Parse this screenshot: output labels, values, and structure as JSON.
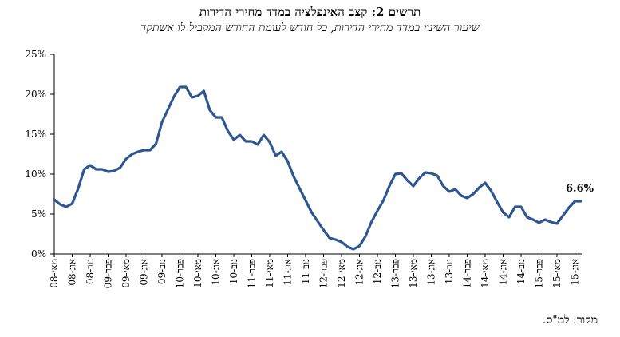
{
  "chart_data": {
    "type": "line",
    "title": "תרשים 2: קצב האינפלציה במדד מחירי הדירות",
    "subtitle": "שיעור השינוי במדד מחירי הדירות, כל חודש לעומת החודש המקביל לו אשתקד",
    "source": "מקור: למ\"ס.",
    "y_ticks": [
      "0%",
      "5%",
      "10%",
      "15%",
      "20%",
      "25%"
    ],
    "ylim": [
      0,
      25
    ],
    "x_tick_labels": [
      "מאי-08",
      "אוג-08",
      "נוב-08",
      "פבר-09",
      "מאי-09",
      "אוג-09",
      "נוב-09",
      "פבר-10",
      "מאי-10",
      "אוג-10",
      "נוב-10",
      "פבר-11",
      "מאי-11",
      "אוג-11",
      "נוב-11",
      "פבר-12",
      "מאי-12",
      "אוג-12",
      "נוב-12",
      "פבר-13",
      "מאי-13",
      "אוג-13",
      "נוב-13",
      "פבר-14",
      "מאי-14",
      "אוג-14",
      "נוב-14",
      "פבר-15",
      "מאי-15",
      "אוג-15"
    ],
    "annotation": "6.6%",
    "line_color": "#2e5790",
    "series": [
      {
        "values": [
          6.8,
          6.2,
          5.9,
          6.3,
          8.2,
          10.6,
          11.1,
          10.6,
          10.6,
          10.3,
          10.4,
          10.8,
          11.9,
          12.5,
          12.8,
          13.0,
          13.0,
          13.8,
          16.5,
          18.1,
          19.7,
          20.9,
          20.9,
          19.6,
          19.8,
          20.4,
          18.0,
          17.1,
          17.1,
          15.4,
          14.3,
          14.9,
          14.1,
          14.1,
          13.7,
          14.9,
          14.0,
          12.3,
          12.8,
          11.6,
          9.7,
          8.2,
          6.7,
          5.2,
          4.1,
          3.0,
          2.0,
          1.8,
          1.5,
          0.9,
          0.6,
          1.0,
          2.2,
          4.0,
          5.4,
          6.7,
          8.5,
          10.0,
          10.1,
          9.2,
          8.5,
          9.5,
          10.2,
          10.1,
          9.8,
          8.5,
          7.8,
          8.1,
          7.3,
          7.0,
          7.5,
          8.3,
          8.9,
          7.9,
          6.5,
          5.2,
          4.6,
          5.9,
          5.9,
          4.6,
          4.3,
          3.9,
          4.3,
          4.0,
          3.8,
          4.8,
          5.8,
          6.6,
          6.6
        ]
      }
    ]
  }
}
